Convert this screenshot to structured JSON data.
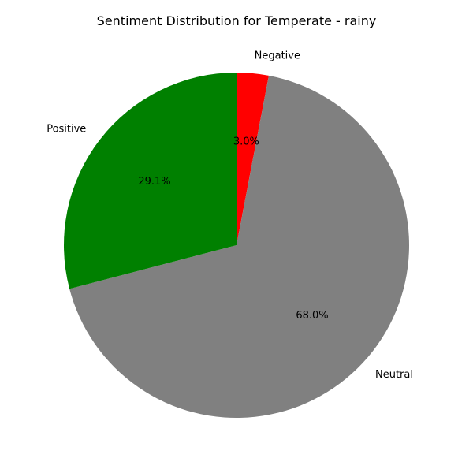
{
  "chart_data": {
    "type": "pie",
    "title": "Sentiment Distribution for Temperate - rainy",
    "slices": [
      {
        "label": "Negative",
        "value": 3.0,
        "pct_label": "3.0%",
        "color": "#ff0000"
      },
      {
        "label": "Neutral",
        "value": 68.0,
        "pct_label": "68.0%",
        "color": "#808080"
      },
      {
        "label": "Positive",
        "value": 29.1,
        "pct_label": "29.1%",
        "color": "#008000"
      }
    ],
    "start_angle": "top",
    "direction": "clockwise",
    "legend": "none",
    "grid": false
  }
}
